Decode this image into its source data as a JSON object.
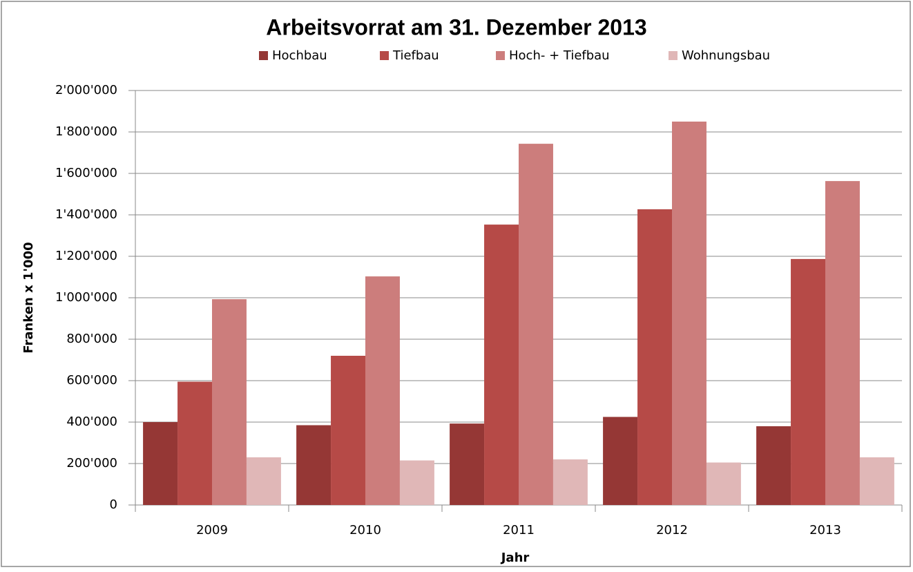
{
  "chart_data": {
    "type": "bar",
    "title": "Arbeitsvorrat am 31. Dezember 2013",
    "x_label": "Jahr",
    "y_label": "Franken x 1'000",
    "categories": [
      "2009",
      "2010",
      "2011",
      "2012",
      "2013"
    ],
    "series": [
      {
        "name": "Hochbau",
        "color": "#953735",
        "values": [
          400000,
          385000,
          393000,
          425000,
          380000
        ]
      },
      {
        "name": "Tiefbau",
        "color": "#b64a47",
        "values": [
          595000,
          720000,
          1353000,
          1427000,
          1187000
        ]
      },
      {
        "name": "Hoch- + Tiefbau",
        "color": "#cc7d7c",
        "values": [
          993000,
          1103000,
          1743000,
          1850000,
          1563000
        ]
      },
      {
        "name": "Wohnungsbau",
        "color": "#e0b7b7",
        "values": [
          230000,
          215000,
          220000,
          205000,
          230000
        ]
      }
    ],
    "ylim": [
      0,
      2000000
    ],
    "yticks": [
      0,
      {
        "value": 200000,
        "label": "200'000"
      },
      {
        "value": 400000,
        "label": "400'000"
      },
      {
        "value": 600000,
        "label": "600'000"
      },
      {
        "value": 800000,
        "label": "800'000"
      },
      {
        "value": 1000000,
        "label": "1'000'000"
      },
      {
        "value": 1200000,
        "label": "1'200'000"
      },
      {
        "value": 1400000,
        "label": "1'400'000"
      },
      {
        "value": 1600000,
        "label": "1'600'000"
      },
      {
        "value": 1800000,
        "label": "1'800'000"
      },
      {
        "value": 2000000,
        "label": "2'000'000"
      }
    ],
    "grid": true,
    "legend": "top"
  }
}
